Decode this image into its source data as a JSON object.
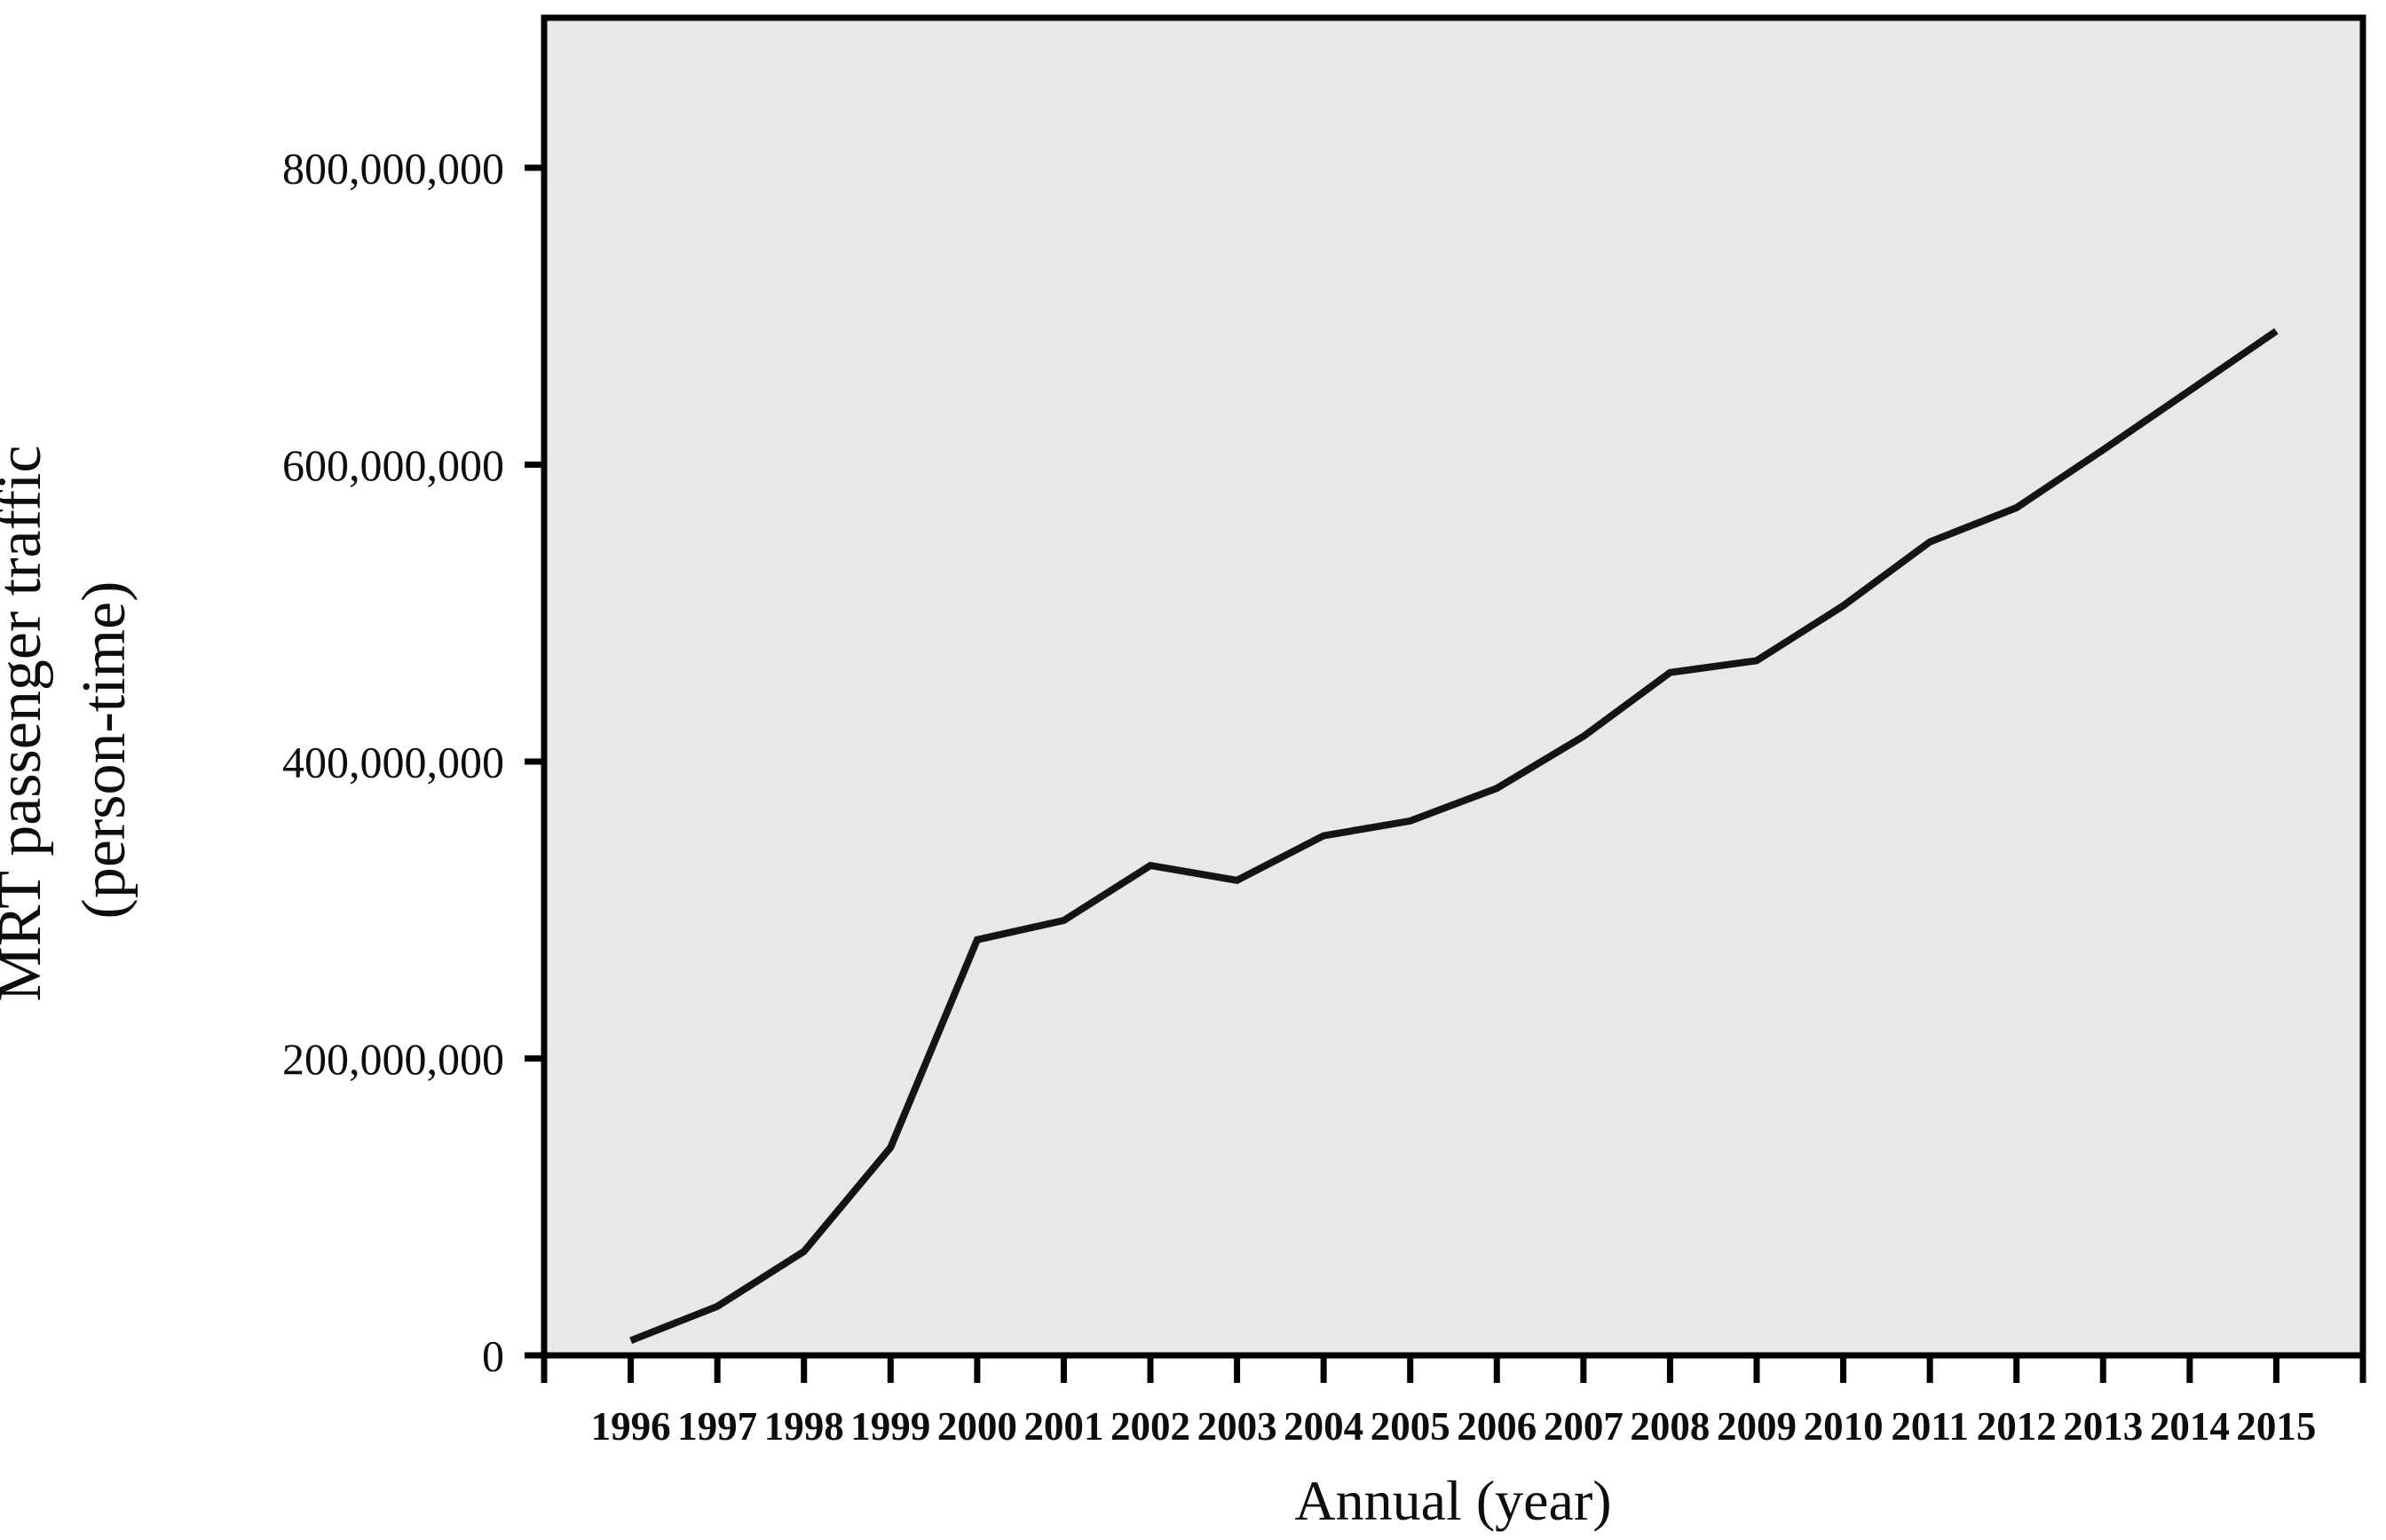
{
  "figure": {
    "background_color": "#ffffff",
    "plot_background_color": "#e8e8e8",
    "border_color": "#000000",
    "series_color": "#141414",
    "text_color": "#0d0d0d"
  },
  "chart_data": {
    "type": "line",
    "title": "",
    "xlabel": "Annual (year)",
    "ylabel": "MRT passenger traffic (person-time)",
    "ylabel_line1": "MRT passenger traffic",
    "ylabel_line2": "(person-time)",
    "categories": [
      "1996",
      "1997",
      "1998",
      "1999",
      "2000",
      "2001",
      "2002",
      "2003",
      "2004",
      "2005",
      "2006",
      "2007",
      "2008",
      "2009",
      "2010",
      "2011",
      "2012",
      "2013",
      "2014",
      "2015"
    ],
    "values": [
      10000000,
      33000000,
      70000000,
      140000000,
      280000000,
      293000000,
      330000000,
      320000000,
      350000000,
      360000000,
      382000000,
      417000000,
      460000000,
      468000000,
      505000000,
      548000000,
      571000000,
      610000000,
      650000000,
      690000000
    ],
    "series_name": "MRT passenger traffic",
    "y_ticks": [
      0,
      200000000,
      400000000,
      600000000,
      800000000
    ],
    "y_tick_labels": [
      "0",
      "200,000,000",
      "400,000,000",
      "600,000,000",
      "800,000,000"
    ],
    "ylim": [
      0,
      900000000
    ],
    "grid": false,
    "legend_position": "none"
  }
}
